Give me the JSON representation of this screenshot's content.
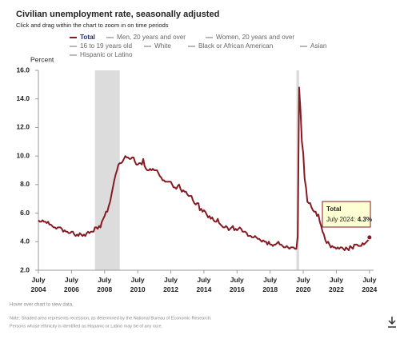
{
  "chart_data": {
    "type": "line",
    "title": "Civilian unemployment rate, seasonally adjusted",
    "subtitle": "Click and drag within the chart to zoom in on time periods",
    "y_label": "Percent",
    "x": [
      "2004-07",
      "2004-08",
      "2004-09",
      "2004-10",
      "2004-11",
      "2004-12",
      "2005-01",
      "2005-02",
      "2005-03",
      "2005-04",
      "2005-05",
      "2005-06",
      "2005-07",
      "2005-08",
      "2005-09",
      "2005-10",
      "2005-11",
      "2005-12",
      "2006-01",
      "2006-02",
      "2006-03",
      "2006-04",
      "2006-05",
      "2006-06",
      "2006-07",
      "2006-08",
      "2006-09",
      "2006-10",
      "2006-11",
      "2006-12",
      "2007-01",
      "2007-02",
      "2007-03",
      "2007-04",
      "2007-05",
      "2007-06",
      "2007-07",
      "2007-08",
      "2007-09",
      "2007-10",
      "2007-11",
      "2007-12",
      "2008-01",
      "2008-02",
      "2008-03",
      "2008-04",
      "2008-05",
      "2008-06",
      "2008-07",
      "2008-08",
      "2008-09",
      "2008-10",
      "2008-11",
      "2008-12",
      "2009-01",
      "2009-02",
      "2009-03",
      "2009-04",
      "2009-05",
      "2009-06",
      "2009-07",
      "2009-08",
      "2009-09",
      "2009-10",
      "2009-11",
      "2009-12",
      "2010-01",
      "2010-02",
      "2010-03",
      "2010-04",
      "2010-05",
      "2010-06",
      "2010-07",
      "2010-08",
      "2010-09",
      "2010-10",
      "2010-11",
      "2010-12",
      "2011-01",
      "2011-02",
      "2011-03",
      "2011-04",
      "2011-05",
      "2011-06",
      "2011-07",
      "2011-08",
      "2011-09",
      "2011-10",
      "2011-11",
      "2011-12",
      "2012-01",
      "2012-02",
      "2012-03",
      "2012-04",
      "2012-05",
      "2012-06",
      "2012-07",
      "2012-08",
      "2012-09",
      "2012-10",
      "2012-11",
      "2012-12",
      "2013-01",
      "2013-02",
      "2013-03",
      "2013-04",
      "2013-05",
      "2013-06",
      "2013-07",
      "2013-08",
      "2013-09",
      "2013-10",
      "2013-11",
      "2013-12",
      "2014-01",
      "2014-02",
      "2014-03",
      "2014-04",
      "2014-05",
      "2014-06",
      "2014-07",
      "2014-08",
      "2014-09",
      "2014-10",
      "2014-11",
      "2014-12",
      "2015-01",
      "2015-02",
      "2015-03",
      "2015-04",
      "2015-05",
      "2015-06",
      "2015-07",
      "2015-08",
      "2015-09",
      "2015-10",
      "2015-11",
      "2015-12",
      "2016-01",
      "2016-02",
      "2016-03",
      "2016-04",
      "2016-05",
      "2016-06",
      "2016-07",
      "2016-08",
      "2016-09",
      "2016-10",
      "2016-11",
      "2016-12",
      "2017-01",
      "2017-02",
      "2017-03",
      "2017-04",
      "2017-05",
      "2017-06",
      "2017-07",
      "2017-08",
      "2017-09",
      "2017-10",
      "2017-11",
      "2017-12",
      "2018-01",
      "2018-02",
      "2018-03",
      "2018-04",
      "2018-05",
      "2018-06",
      "2018-07",
      "2018-08",
      "2018-09",
      "2018-10",
      "2018-11",
      "2018-12",
      "2019-01",
      "2019-02",
      "2019-03",
      "2019-04",
      "2019-05",
      "2019-06",
      "2019-07",
      "2019-08",
      "2019-09",
      "2019-10",
      "2019-11",
      "2019-12",
      "2020-01",
      "2020-02",
      "2020-03",
      "2020-04",
      "2020-05",
      "2020-06",
      "2020-07",
      "2020-08",
      "2020-09",
      "2020-10",
      "2020-11",
      "2020-12",
      "2021-01",
      "2021-02",
      "2021-03",
      "2021-04",
      "2021-05",
      "2021-06",
      "2021-07",
      "2021-08",
      "2021-09",
      "2021-10",
      "2021-11",
      "2021-12",
      "2022-01",
      "2022-02",
      "2022-03",
      "2022-04",
      "2022-05",
      "2022-06",
      "2022-07",
      "2022-08",
      "2022-09",
      "2022-10",
      "2022-11",
      "2022-12",
      "2023-01",
      "2023-02",
      "2023-03",
      "2023-04",
      "2023-05",
      "2023-06",
      "2023-07",
      "2023-08",
      "2023-09",
      "2023-10",
      "2023-11",
      "2023-12",
      "2024-01",
      "2024-02",
      "2024-03",
      "2024-04",
      "2024-05",
      "2024-06",
      "2024-07"
    ],
    "series": [
      {
        "name": "Total",
        "color": "#861a22",
        "values": [
          5.5,
          5.4,
          5.4,
          5.5,
          5.4,
          5.4,
          5.3,
          5.4,
          5.2,
          5.2,
          5.1,
          5.0,
          5.0,
          4.9,
          5.0,
          5.0,
          5.0,
          4.9,
          4.7,
          4.8,
          4.7,
          4.7,
          4.6,
          4.6,
          4.7,
          4.7,
          4.5,
          4.4,
          4.5,
          4.4,
          4.6,
          4.5,
          4.4,
          4.5,
          4.4,
          4.6,
          4.7,
          4.6,
          4.7,
          4.7,
          4.7,
          5.0,
          5.0,
          4.9,
          5.1,
          5.0,
          5.4,
          5.6,
          5.8,
          6.1,
          6.1,
          6.5,
          6.8,
          7.3,
          7.8,
          8.3,
          8.7,
          9.0,
          9.4,
          9.5,
          9.5,
          9.6,
          9.8,
          10.0,
          9.9,
          9.9,
          9.8,
          9.8,
          9.9,
          9.9,
          9.6,
          9.4,
          9.4,
          9.5,
          9.5,
          9.4,
          9.8,
          9.3,
          9.1,
          9.0,
          9.0,
          9.1,
          9.0,
          9.1,
          9.0,
          9.0,
          9.0,
          8.8,
          8.6,
          8.5,
          8.3,
          8.3,
          8.2,
          8.2,
          8.2,
          8.2,
          8.2,
          8.0,
          7.8,
          7.8,
          7.7,
          7.9,
          8.0,
          7.7,
          7.5,
          7.6,
          7.5,
          7.5,
          7.3,
          7.2,
          7.2,
          7.2,
          6.9,
          6.7,
          6.6,
          6.7,
          6.7,
          6.2,
          6.3,
          6.1,
          6.2,
          6.1,
          5.9,
          5.7,
          5.8,
          5.6,
          5.7,
          5.5,
          5.4,
          5.4,
          5.6,
          5.3,
          5.2,
          5.1,
          5.0,
          5.0,
          5.1,
          5.0,
          4.8,
          4.9,
          5.0,
          5.1,
          4.8,
          4.9,
          4.8,
          4.9,
          5.0,
          4.9,
          4.7,
          4.7,
          4.7,
          4.6,
          4.4,
          4.4,
          4.4,
          4.3,
          4.3,
          4.4,
          4.3,
          4.2,
          4.2,
          4.1,
          4.0,
          4.1,
          4.0,
          4.0,
          3.8,
          4.0,
          3.8,
          3.8,
          3.7,
          3.8,
          3.8,
          3.9,
          4.0,
          3.8,
          3.8,
          3.7,
          3.6,
          3.6,
          3.7,
          3.6,
          3.5,
          3.6,
          3.6,
          3.6,
          3.5,
          3.5,
          4.4,
          14.8,
          13.2,
          11.0,
          10.2,
          8.4,
          7.8,
          6.8,
          6.7,
          6.7,
          6.4,
          6.2,
          6.1,
          6.1,
          5.8,
          5.9,
          5.4,
          5.1,
          4.7,
          4.5,
          4.1,
          3.9,
          4.0,
          3.8,
          3.6,
          3.7,
          3.6,
          3.6,
          3.5,
          3.6,
          3.5,
          3.6,
          3.6,
          3.5,
          3.4,
          3.6,
          3.5,
          3.4,
          3.7,
          3.6,
          3.5,
          3.8,
          3.8,
          3.8,
          3.7,
          3.7,
          3.7,
          3.9,
          3.8,
          3.9,
          4.0,
          4.1,
          4.3
        ]
      }
    ],
    "inactive_legend": [
      "Men, 20 years and over",
      "Women, 20 years and over",
      "16 to 19 years old",
      "White",
      "Black or African American",
      "Asian",
      "Hispanic or Latino"
    ],
    "inactive_color": "#888888",
    "recessions": [
      [
        "2007-12",
        "2009-06"
      ],
      [
        "2020-02",
        "2020-04"
      ]
    ],
    "recession_color": "#dcdcdc",
    "xlim": [
      "2004-07",
      "2024-10"
    ],
    "xticks": [
      {
        "value": "2004-07",
        "label": "July 2004"
      },
      {
        "value": "2006-07",
        "label": "July 2006"
      },
      {
        "value": "2008-07",
        "label": "July 2008"
      },
      {
        "value": "2010-07",
        "label": "July 2010"
      },
      {
        "value": "2012-07",
        "label": "July 2012"
      },
      {
        "value": "2014-07",
        "label": "July 2014"
      },
      {
        "value": "2016-07",
        "label": "July 2016"
      },
      {
        "value": "2018-07",
        "label": "July 2018"
      },
      {
        "value": "2020-07",
        "label": "July 2020"
      },
      {
        "value": "2022-07",
        "label": "July 2022"
      },
      {
        "value": "2024-07",
        "label": "July 2024"
      }
    ],
    "ylim": [
      2,
      16
    ],
    "yticks": [
      {
        "value": 2,
        "label": "2.0"
      },
      {
        "value": 4,
        "label": "4.0"
      },
      {
        "value": 6,
        "label": "6.0"
      },
      {
        "value": 8,
        "label": "8.0"
      },
      {
        "value": 10,
        "label": "10.0"
      },
      {
        "value": 12,
        "label": "12.0"
      },
      {
        "value": 14,
        "label": "14.0"
      },
      {
        "value": 16,
        "label": "16.0"
      }
    ],
    "grid": false,
    "tooltip": {
      "title": "Total",
      "date": "July 2024:",
      "value_label": "4.3%"
    },
    "hover_note": "Hover over chart to view data.",
    "notes": [
      "Note: Shaded area represents recession, as determined by the National Bureau of Economic Research.",
      "Persons whose ethnicity is identified as Hispanic or Latino may be of any race."
    ]
  }
}
